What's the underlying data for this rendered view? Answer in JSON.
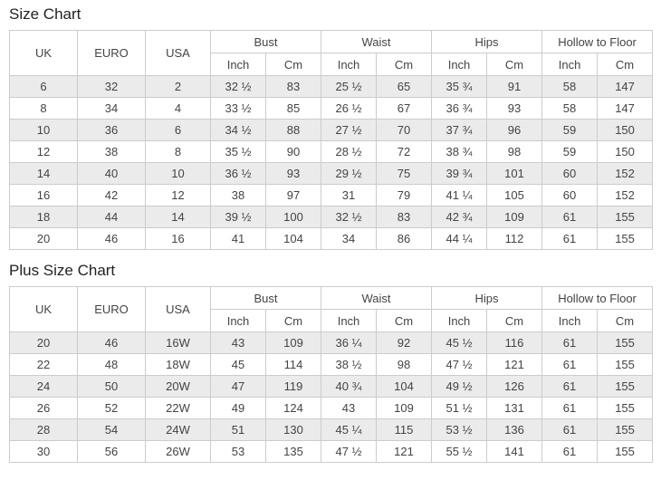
{
  "theme": {
    "bg": "#ffffff",
    "text": "#444444",
    "title": "#222222",
    "border": "#cccccc",
    "stripe": "#ebebeb"
  },
  "chart_data": [
    {
      "type": "table",
      "title": "Size Chart",
      "header": {
        "size_columns": [
          "UK",
          "EURO",
          "USA"
        ],
        "measure_groups": [
          "Bust",
          "Waist",
          "Hips",
          "Hollow to Floor"
        ],
        "unit_columns": [
          "Inch",
          "Cm"
        ]
      },
      "rows": [
        [
          "6",
          "32",
          "2",
          "32 ½",
          "83",
          "25 ½",
          "65",
          "35 ¾",
          "91",
          "58",
          "147"
        ],
        [
          "8",
          "34",
          "4",
          "33 ½",
          "85",
          "26 ½",
          "67",
          "36 ¾",
          "93",
          "58",
          "147"
        ],
        [
          "10",
          "36",
          "6",
          "34 ½",
          "88",
          "27 ½",
          "70",
          "37 ¾",
          "96",
          "59",
          "150"
        ],
        [
          "12",
          "38",
          "8",
          "35 ½",
          "90",
          "28 ½",
          "72",
          "38 ¾",
          "98",
          "59",
          "150"
        ],
        [
          "14",
          "40",
          "10",
          "36 ½",
          "93",
          "29 ½",
          "75",
          "39 ¾",
          "101",
          "60",
          "152"
        ],
        [
          "16",
          "42",
          "12",
          "38",
          "97",
          "31",
          "79",
          "41 ¼",
          "105",
          "60",
          "152"
        ],
        [
          "18",
          "44",
          "14",
          "39 ½",
          "100",
          "32 ½",
          "83",
          "42 ¾",
          "109",
          "61",
          "155"
        ],
        [
          "20",
          "46",
          "16",
          "41",
          "104",
          "34",
          "86",
          "44 ¼",
          "112",
          "61",
          "155"
        ]
      ]
    },
    {
      "type": "table",
      "title": "Plus Size Chart",
      "header": {
        "size_columns": [
          "UK",
          "EURO",
          "USA"
        ],
        "measure_groups": [
          "Bust",
          "Waist",
          "Hips",
          "Hollow to Floor"
        ],
        "unit_columns": [
          "Inch",
          "Cm"
        ]
      },
      "rows": [
        [
          "20",
          "46",
          "16W",
          "43",
          "109",
          "36 ¼",
          "92",
          "45 ½",
          "116",
          "61",
          "155"
        ],
        [
          "22",
          "48",
          "18W",
          "45",
          "114",
          "38 ½",
          "98",
          "47 ½",
          "121",
          "61",
          "155"
        ],
        [
          "24",
          "50",
          "20W",
          "47",
          "119",
          "40 ¾",
          "104",
          "49 ½",
          "126",
          "61",
          "155"
        ],
        [
          "26",
          "52",
          "22W",
          "49",
          "124",
          "43",
          "109",
          "51 ½",
          "131",
          "61",
          "155"
        ],
        [
          "28",
          "54",
          "24W",
          "51",
          "130",
          "45 ¼",
          "115",
          "53 ½",
          "136",
          "61",
          "155"
        ],
        [
          "30",
          "56",
          "26W",
          "53",
          "135",
          "47 ½",
          "121",
          "55 ½",
          "141",
          "61",
          "155"
        ]
      ]
    }
  ]
}
